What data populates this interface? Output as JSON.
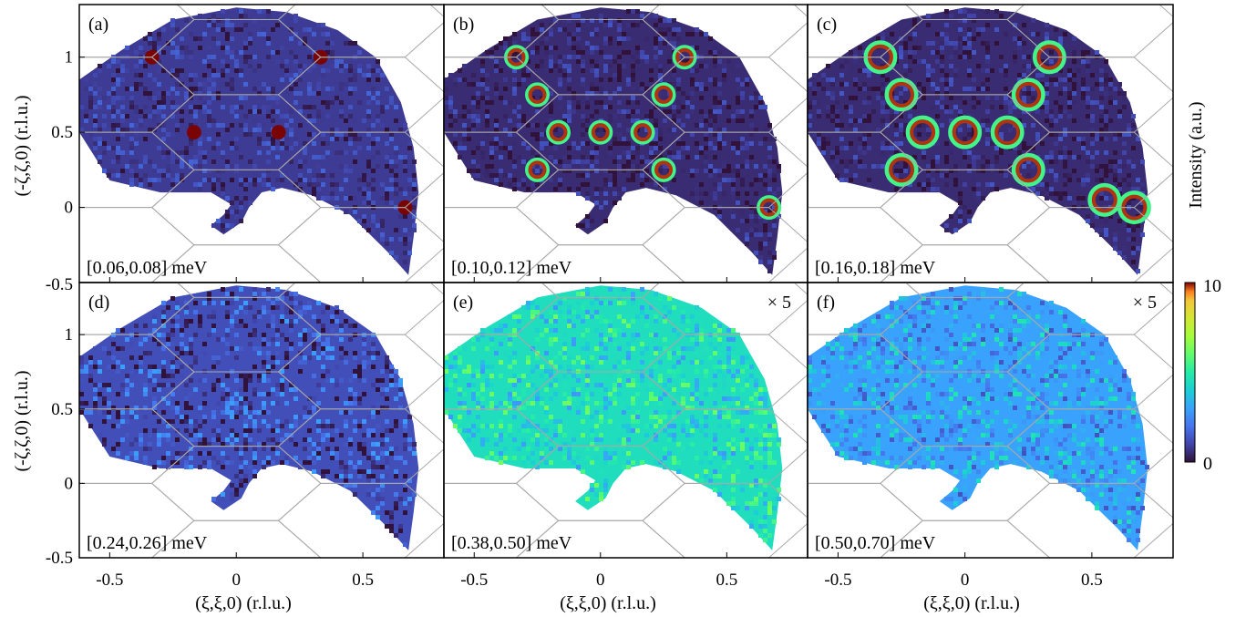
{
  "figure": {
    "y_axis_label": "(-ζ,ζ,0) (r.l.u.)",
    "x_axis_label": "(ξ,ξ,0) (r.l.u.)",
    "colorbar": {
      "label": "Intensity (a.u.)",
      "max_label": "10",
      "min_label": "0",
      "min": 0,
      "max": 10,
      "colormap": "turbo"
    }
  },
  "chart_data": {
    "type": "heatmap",
    "xlim": [
      -0.62,
      0.82
    ],
    "ylim": [
      -0.5,
      1.35
    ],
    "x_ticks": [
      "-0.5",
      "0",
      "0.5"
    ],
    "x_tick_values": [
      -0.5,
      0,
      0.5
    ],
    "y_ticks": [
      "-0.5",
      "0",
      "0.5",
      "1"
    ],
    "y_tick_values": [
      -0.5,
      0,
      0.5,
      1
    ],
    "grid": "hexagonal Brillouin zone boundaries",
    "panels": [
      {
        "label": "(a)",
        "energy_range": "[0.06,0.08] meV",
        "multiplier": "",
        "peaks": [
          [
            -0.333,
            1.0
          ],
          [
            0.333,
            1.0
          ],
          [
            -0.167,
            0.5
          ],
          [
            0.167,
            0.5
          ],
          [
            0.667,
            0.0
          ]
        ]
      },
      {
        "label": "(b)",
        "energy_range": "[0.10,0.12] meV",
        "multiplier": "",
        "peaks": [
          [
            -0.333,
            1.0
          ],
          [
            0.333,
            1.0
          ],
          [
            -0.25,
            0.75
          ],
          [
            0.25,
            0.75
          ],
          [
            -0.167,
            0.5
          ],
          [
            0.0,
            0.5
          ],
          [
            0.167,
            0.5
          ],
          [
            -0.25,
            0.25
          ],
          [
            0.25,
            0.25
          ],
          [
            0.667,
            0.0
          ]
        ]
      },
      {
        "label": "(c)",
        "energy_range": "[0.16,0.18] meV",
        "multiplier": "",
        "peaks": [
          [
            -0.333,
            1.0
          ],
          [
            0.333,
            1.0
          ],
          [
            -0.25,
            0.75
          ],
          [
            0.25,
            0.75
          ],
          [
            -0.167,
            0.5
          ],
          [
            0.0,
            0.5
          ],
          [
            0.167,
            0.5
          ],
          [
            -0.25,
            0.25
          ],
          [
            0.25,
            0.25
          ],
          [
            0.667,
            0.0
          ],
          [
            0.55,
            0.05
          ]
        ]
      },
      {
        "label": "(d)",
        "energy_range": "[0.24,0.26] meV",
        "multiplier": "",
        "peaks": []
      },
      {
        "label": "(e)",
        "energy_range": "[0.38,0.50] meV",
        "multiplier": "× 5",
        "peaks": []
      },
      {
        "label": "(f)",
        "energy_range": "[0.50,0.70] meV",
        "multiplier": "× 5",
        "peaks": []
      }
    ]
  }
}
